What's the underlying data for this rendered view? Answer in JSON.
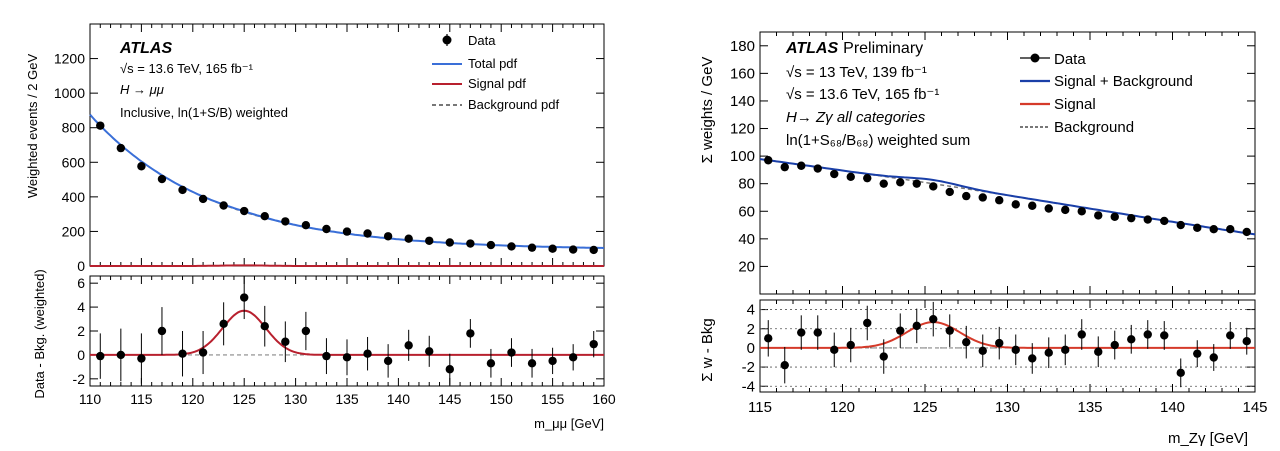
{
  "chart_data": [
    {
      "type": "scatter",
      "experiment": "ATLAS",
      "energy_lumi": "√s = 13.6 TeV, 165 fb⁻¹",
      "process": "H → μμ",
      "selection": "Inclusive, ln(1+S/B) weighted",
      "ylabel": "Weighted events / 2 GeV",
      "xlabel": "m_μμ [GeV]",
      "xlim": [
        110,
        160
      ],
      "ylim": [
        0,
        1400
      ],
      "xticks": [
        110,
        115,
        120,
        125,
        130,
        135,
        140,
        145,
        150,
        155,
        160
      ],
      "yticks": [
        0,
        200,
        400,
        600,
        800,
        1000,
        1200
      ],
      "legend_position": "top-right",
      "legend": [
        "Data",
        "Total pdf",
        "Signal pdf",
        "Background pdf"
      ],
      "colors": {
        "data": "#000000",
        "total": "#3a6fd8",
        "signal": "#b8202e",
        "background": "#777777"
      },
      "data": {
        "x": [
          111,
          113,
          115,
          117,
          119,
          121,
          123,
          125,
          127,
          129,
          131,
          133,
          135,
          137,
          139,
          141,
          143,
          145,
          147,
          149,
          151,
          153,
          155,
          157,
          159
        ],
        "y": [
          812,
          682,
          577,
          503,
          440,
          388,
          350,
          318,
          288,
          258,
          236,
          214,
          199,
          188,
          172,
          158,
          146,
          136,
          130,
          121,
          113,
          106,
          100,
          95,
          93
        ]
      },
      "ratio": {
        "ylabel": "Data - Bkg. (weighted)",
        "ylim": [
          -2.6,
          6.6
        ],
        "yticks": [
          -2,
          0,
          2,
          4,
          6
        ],
        "x": [
          111,
          113,
          115,
          117,
          119,
          121,
          123,
          125,
          127,
          129,
          131,
          133,
          135,
          137,
          139,
          141,
          143,
          145,
          147,
          149,
          151,
          153,
          155,
          157,
          159
        ],
        "y": [
          -0.1,
          0,
          -0.3,
          2,
          0.1,
          0.2,
          2.6,
          4.8,
          2.4,
          1.1,
          2,
          -0.1,
          -0.2,
          0.1,
          -0.5,
          0.8,
          0.3,
          -1.2,
          1.8,
          -0.7,
          0.2,
          -0.7,
          -0.5,
          -0.2,
          0.9
        ],
        "err": [
          1.9,
          2.2,
          2.1,
          2.0,
          1.9,
          1.8,
          1.8,
          1.8,
          1.7,
          1.7,
          1.6,
          1.5,
          1.5,
          1.4,
          1.4,
          1.3,
          1.3,
          1.3,
          1.2,
          1.2,
          1.2,
          1.2,
          1.1,
          1.1,
          1.1
        ],
        "signal_peak": {
          "mean": 125,
          "sigma": 2.1,
          "amplitude": 3.7
        }
      }
    },
    {
      "type": "scatter",
      "experiment": "ATLAS",
      "experiment_suffix": "Preliminary",
      "energy_lumi_1": "√s = 13 TeV, 139 fb⁻¹",
      "energy_lumi_2": "√s = 13.6 TeV, 165 fb⁻¹",
      "process": "H→ Zγ all categories",
      "selection": "ln(1+S₆₈/B₆₈) weighted sum",
      "ylabel": "Σ weights / GeV",
      "xlabel": "m_Zγ [GeV]",
      "xlim": [
        115,
        145
      ],
      "ylim": [
        0,
        190
      ],
      "xticks": [
        115,
        120,
        125,
        130,
        135,
        140,
        145
      ],
      "yticks": [
        20,
        40,
        60,
        80,
        100,
        120,
        140,
        160,
        180
      ],
      "legend_position": "top-right",
      "legend": [
        "Data",
        "Signal + Background",
        "Signal",
        "Background"
      ],
      "colors": {
        "data": "#000000",
        "total": "#1a3fa8",
        "signal": "#d53a2a",
        "background": "#777777"
      },
      "data": {
        "x": [
          115.5,
          116.5,
          117.5,
          118.5,
          119.5,
          120.5,
          121.5,
          122.5,
          123.5,
          124.5,
          125.5,
          126.5,
          127.5,
          128.5,
          129.5,
          130.5,
          131.5,
          132.5,
          133.5,
          134.5,
          135.5,
          136.5,
          137.5,
          138.5,
          139.5,
          140.5,
          141.5,
          142.5,
          143.5,
          144.5
        ],
        "y": [
          97,
          92,
          93,
          91,
          87,
          85,
          84,
          80,
          81,
          80,
          78,
          74,
          71,
          70,
          68,
          65,
          64,
          62,
          61,
          60,
          57,
          56,
          55,
          54,
          53,
          50,
          48,
          47,
          47,
          45
        ]
      },
      "ratio": {
        "ylabel": "Σ w - Bkg",
        "ylim": [
          -4.6,
          5.0
        ],
        "yticks": [
          -4,
          -2,
          0,
          2,
          4
        ],
        "x": [
          115.5,
          116.5,
          117.5,
          118.5,
          119.5,
          120.5,
          121.5,
          122.5,
          123.5,
          124.5,
          125.5,
          126.5,
          127.5,
          128.5,
          129.5,
          130.5,
          131.5,
          132.5,
          133.5,
          134.5,
          135.5,
          136.5,
          137.5,
          138.5,
          139.5,
          140.5,
          141.5,
          142.5,
          143.5,
          144.5
        ],
        "y": [
          1,
          -1.8,
          1.6,
          1.6,
          -0.2,
          0.3,
          2.6,
          -0.9,
          1.8,
          2.3,
          3,
          1.8,
          0.6,
          -0.3,
          0.5,
          -0.2,
          -1.1,
          -0.5,
          -0.2,
          1.4,
          -0.4,
          0.3,
          0.9,
          1.4,
          1.3,
          -2.6,
          -0.6,
          -1,
          1.3,
          0.7
        ],
        "err": [
          1.9,
          1.9,
          1.8,
          1.8,
          1.8,
          1.8,
          1.8,
          1.8,
          1.8,
          1.8,
          1.8,
          1.7,
          1.7,
          1.7,
          1.7,
          1.6,
          1.6,
          1.6,
          1.6,
          1.6,
          1.6,
          1.5,
          1.5,
          1.5,
          1.5,
          1.5,
          1.4,
          1.4,
          1.4,
          1.4
        ],
        "signal_peak": {
          "mean": 125.5,
          "sigma": 1.6,
          "amplitude": 2.7
        }
      }
    }
  ]
}
